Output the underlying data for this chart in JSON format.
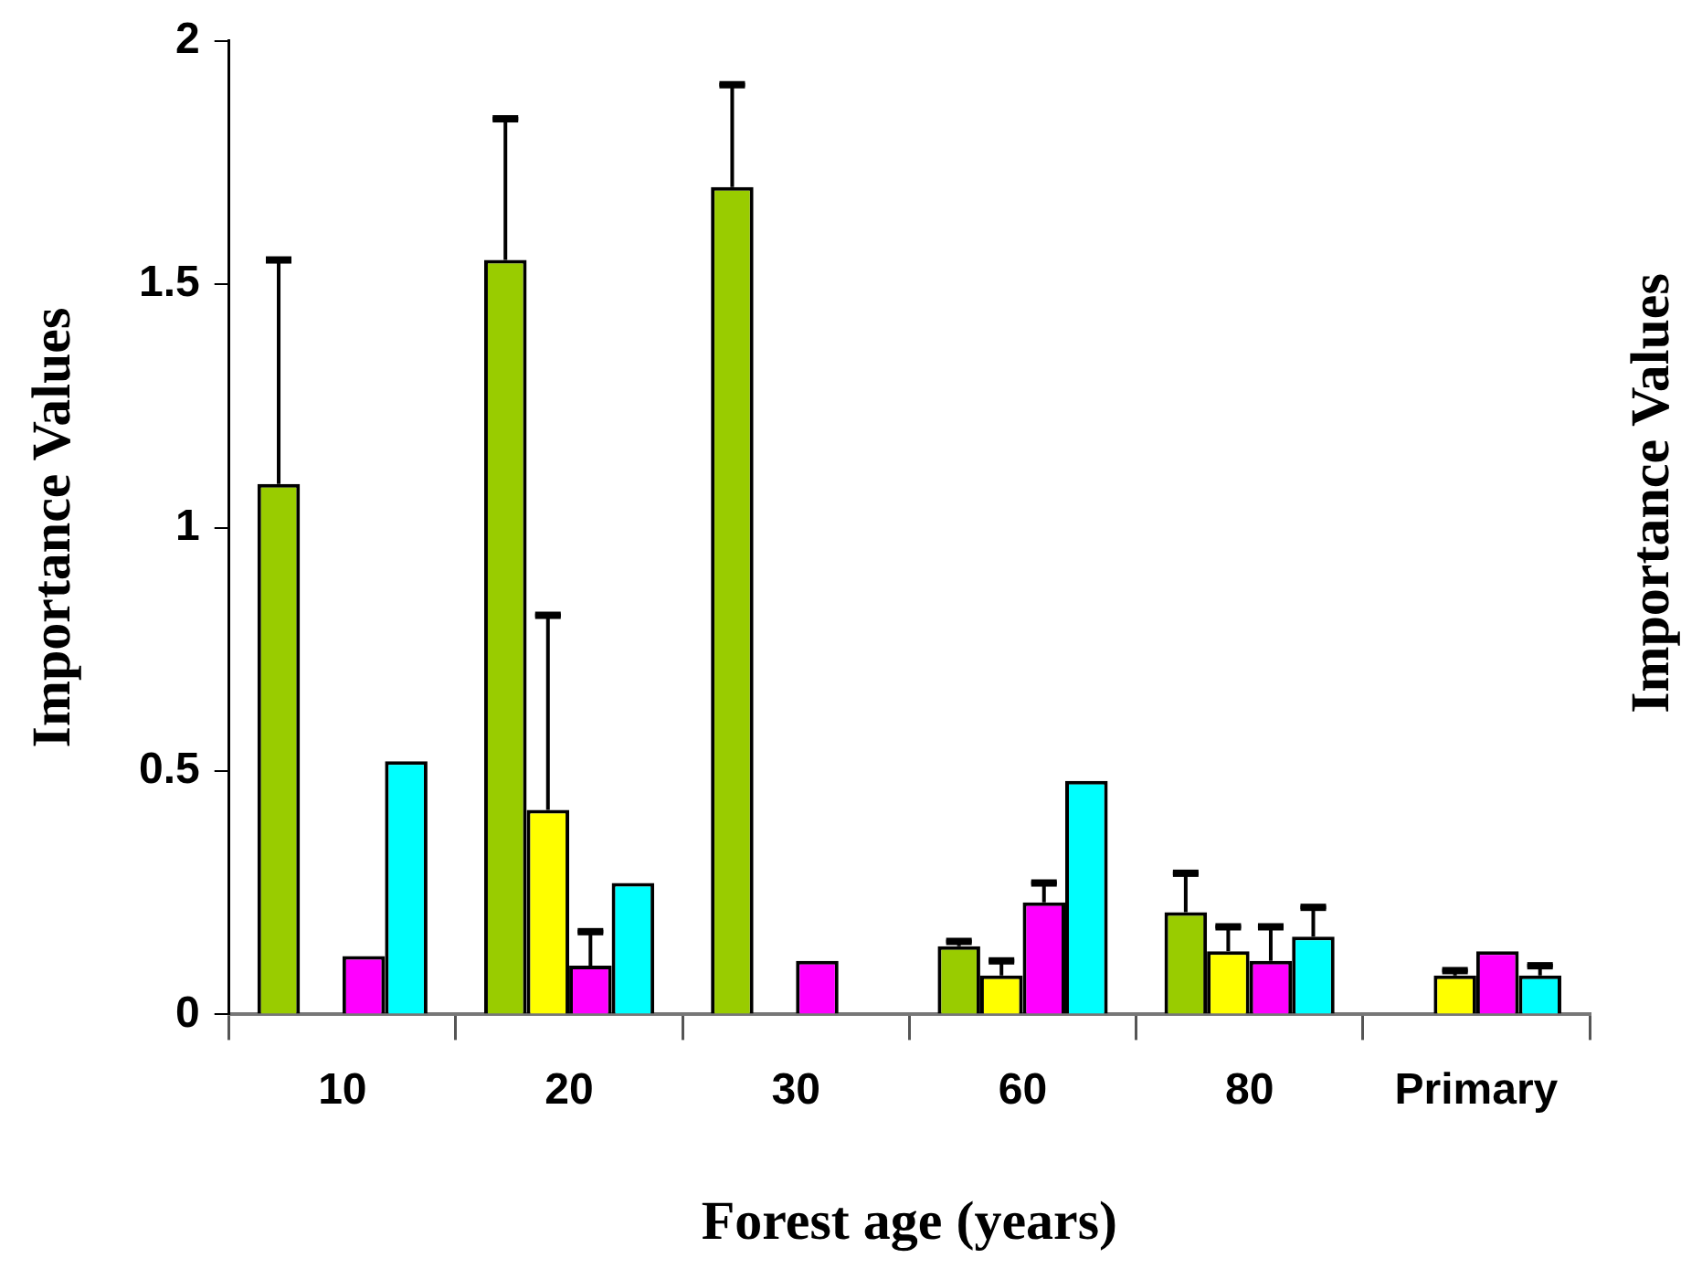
{
  "chart_data": {
    "type": "bar",
    "xlabel": "Forest age (years)",
    "ylabel": "Importance Values",
    "categories": [
      "10",
      "20",
      "30",
      "60",
      "80",
      "Primary"
    ],
    "series": [
      {
        "color": "#99cc00",
        "values": [
          1.09,
          1.55,
          1.7,
          0.14,
          0.21,
          0
        ],
        "errors": [
          [
            1.09,
            1.55
          ],
          [
            1.55,
            1.84
          ],
          [
            1.7,
            1.91
          ],
          [
            0.14,
            0.15
          ],
          [
            0.21,
            0.29
          ],
          null
        ]
      },
      {
        "color": "#ffff00",
        "values": [
          0,
          0.42,
          0,
          0.08,
          0.13,
          0.08
        ],
        "errors": [
          null,
          [
            0.42,
            0.82
          ],
          null,
          [
            0.08,
            0.11
          ],
          [
            0.13,
            0.18
          ],
          [
            0.08,
            0.09
          ]
        ]
      },
      {
        "color": "#ff00ff",
        "values": [
          0.12,
          0.1,
          0.11,
          0.23,
          0.11,
          0.13
        ],
        "errors": [
          null,
          [
            0.1,
            0.17
          ],
          null,
          [
            0.23,
            0.27
          ],
          [
            0.11,
            0.18
          ],
          null
        ]
      },
      {
        "color": "#00ffff",
        "values": [
          0.52,
          0.27,
          0,
          0.48,
          0.16,
          0.08
        ],
        "errors": [
          null,
          null,
          null,
          null,
          [
            0.16,
            0.22
          ],
          [
            0.08,
            0.1
          ]
        ]
      }
    ],
    "ylim": [
      0,
      2
    ],
    "yticks": [
      0,
      0.5,
      1,
      1.5,
      2
    ],
    "grid": false,
    "legend": false,
    "annotations": [
      "Importance Values"
    ]
  }
}
